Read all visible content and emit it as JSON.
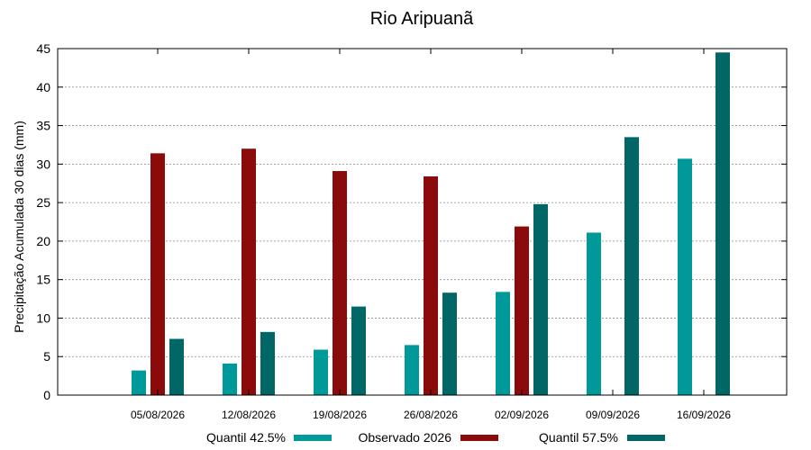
{
  "chart_data": {
    "type": "bar",
    "title": "Rio Aripuanã",
    "ylabel": "Precipitação Acumulada 30 dias (mm)",
    "xlabel": "",
    "ylim": [
      0,
      45
    ],
    "yticks": [
      0,
      5,
      10,
      15,
      20,
      25,
      30,
      35,
      40,
      45
    ],
    "grid": true,
    "legend_position": "bottom",
    "categories": [
      "05/08/2026",
      "12/08/2026",
      "19/08/2026",
      "26/08/2026",
      "02/09/2026",
      "09/09/2026",
      "16/09/2026"
    ],
    "series": [
      {
        "name": "Quantil 42.5%",
        "color": "#009999",
        "values": [
          3.2,
          4.1,
          5.9,
          6.5,
          13.4,
          21.1,
          30.7
        ]
      },
      {
        "name": "Observado 2026",
        "color": "#8b0a0a",
        "values": [
          31.4,
          32.0,
          29.1,
          28.4,
          21.9,
          null,
          null
        ]
      },
      {
        "name": "Quantil 57.5%",
        "color": "#006666",
        "values": [
          7.3,
          8.2,
          11.5,
          13.3,
          24.8,
          33.5,
          44.5
        ]
      }
    ]
  }
}
